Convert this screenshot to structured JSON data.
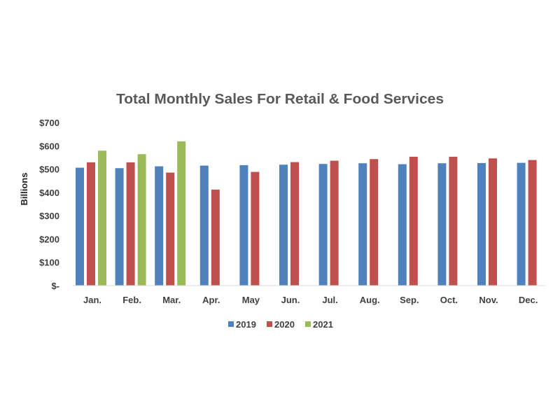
{
  "chart_data": {
    "type": "bar",
    "title": "Total Monthly Sales For Retail & Food Services",
    "xlabel": "",
    "ylabel": "Billions",
    "ylim": [
      0,
      700
    ],
    "yticks": [
      0,
      100,
      200,
      300,
      400,
      500,
      600,
      700
    ],
    "ytick_labels": [
      "$-",
      "$100",
      "$200",
      "$300",
      "$400",
      "$500",
      "$600",
      "$700"
    ],
    "grid": false,
    "legend": "bottom",
    "categories": [
      "Jan.",
      "Feb.",
      "Mar.",
      "Apr.",
      "May",
      "Jun.",
      "Jul.",
      "Aug.",
      "Sep.",
      "Oct.",
      "Nov.",
      "Dec."
    ],
    "series": [
      {
        "name": "2019",
        "color": "#4F81BD",
        "values": [
          506,
          504,
          512,
          515,
          517,
          519,
          522,
          525,
          521,
          525,
          526,
          527
        ]
      },
      {
        "name": "2020",
        "color": "#C0504D",
        "values": [
          529,
          529,
          485,
          412,
          488,
          530,
          536,
          543,
          553,
          553,
          546,
          539
        ]
      },
      {
        "name": "2021",
        "color": "#9BBB59",
        "values": [
          579,
          564,
          619,
          null,
          null,
          null,
          null,
          null,
          null,
          null,
          null,
          null
        ]
      }
    ]
  }
}
